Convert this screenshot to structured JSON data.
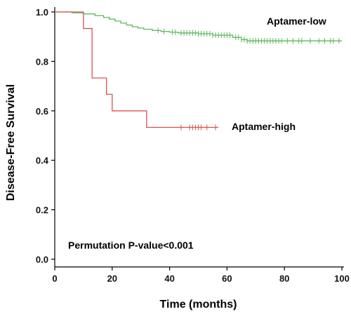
{
  "chart_data": {
    "type": "line",
    "subtype": "kaplan-meier-step",
    "xlabel": "Time (months)",
    "ylabel": "Disease-Free Survival",
    "xlim": [
      0,
      100
    ],
    "ylim": [
      0,
      1.0
    ],
    "x_ticks": [
      0,
      20,
      40,
      60,
      80,
      100
    ],
    "y_ticks": [
      0.0,
      0.2,
      0.4,
      0.6,
      0.8,
      1.0
    ],
    "x_tick_labels": [
      "0",
      "20",
      "40",
      "60",
      "80",
      "100"
    ],
    "y_tick_labels": [
      "0.0",
      "0.2",
      "0.4",
      "0.6",
      "0.8",
      "1.0"
    ],
    "grid": false,
    "annotation": "Permutation P-value<0.001",
    "series": [
      {
        "name": "Aptamer-low",
        "color": "#5cb85c",
        "steps": [
          [
            0,
            1.0
          ],
          [
            6,
            0.996
          ],
          [
            10,
            0.992
          ],
          [
            14,
            0.985
          ],
          [
            17,
            0.978
          ],
          [
            19,
            0.971
          ],
          [
            21,
            0.963
          ],
          [
            23,
            0.955
          ],
          [
            25,
            0.947
          ],
          [
            27,
            0.94
          ],
          [
            29,
            0.935
          ],
          [
            31,
            0.93
          ],
          [
            34,
            0.925
          ],
          [
            37,
            0.921
          ],
          [
            40,
            0.918
          ],
          [
            43,
            0.915
          ],
          [
            50,
            0.912
          ],
          [
            55,
            0.906
          ],
          [
            62,
            0.897
          ],
          [
            65,
            0.888
          ],
          [
            67,
            0.883
          ],
          [
            100,
            0.883
          ]
        ],
        "censored_x": [
          36,
          38,
          41,
          42,
          44,
          45,
          46,
          47,
          48,
          49,
          50,
          51,
          52,
          53,
          54,
          55,
          56,
          57,
          58,
          59,
          60,
          61,
          63,
          64,
          65,
          66,
          67,
          68,
          69,
          70,
          71,
          72,
          73,
          74,
          75,
          76,
          77,
          78,
          79,
          81,
          83,
          85,
          86,
          89,
          92,
          94,
          96,
          97,
          99
        ]
      },
      {
        "name": "Aptamer-high",
        "color": "#d9534f",
        "steps": [
          [
            0,
            1.0
          ],
          [
            10,
            0.933
          ],
          [
            13,
            0.733
          ],
          [
            18,
            0.667
          ],
          [
            20,
            0.6
          ],
          [
            32,
            0.533
          ],
          [
            57,
            0.533
          ]
        ],
        "censored_x": [
          44,
          47,
          48,
          49,
          50,
          51,
          53,
          56
        ]
      }
    ]
  }
}
